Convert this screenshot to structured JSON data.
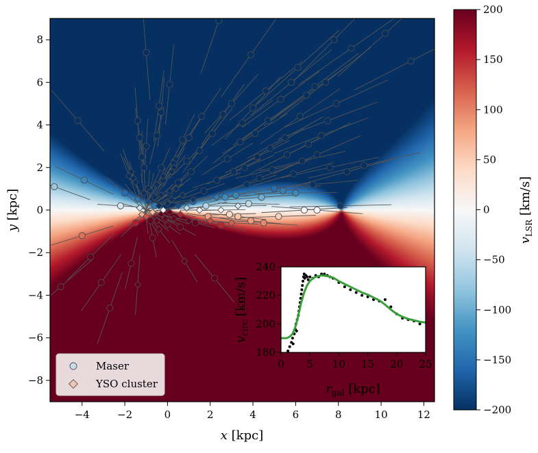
{
  "chart_data": [
    {
      "type": "scatter",
      "xlabel": {
        "main": "x",
        "unit": " [kpc]"
      },
      "ylabel": {
        "main": "y",
        "unit": " [kpc]"
      },
      "xlim": [
        -5.5,
        12.5
      ],
      "ylim": [
        -9,
        9
      ],
      "xticks": [
        -4,
        -2,
        0,
        2,
        4,
        6,
        8,
        10,
        12
      ],
      "yticks": [
        -8,
        -6,
        -4,
        -2,
        0,
        2,
        4,
        6,
        8
      ],
      "background": "v_LSR field (blue = approaching, red = receding)",
      "legend": {
        "placement": "lower-left",
        "entries": [
          {
            "label": "Maser",
            "marker": "circle"
          },
          {
            "label": "YSO cluster",
            "marker": "diamond"
          }
        ]
      },
      "series": [
        {
          "name": "Maser",
          "marker": "circle",
          "points": [
            [
              -5.3,
              1.1
            ],
            [
              -5.0,
              -3.6
            ],
            [
              -4.2,
              4.2
            ],
            [
              -4.0,
              -1.2
            ],
            [
              -3.9,
              1.4
            ],
            [
              -3.6,
              -2.2
            ],
            [
              -3.1,
              -3.4
            ],
            [
              -2.7,
              -4.6
            ],
            [
              -2.2,
              0.2
            ],
            [
              -2.0,
              0.8
            ],
            [
              -1.7,
              -2.5
            ],
            [
              -1.5,
              -0.6
            ],
            [
              -1.4,
              4.2
            ],
            [
              -1.3,
              3.4
            ],
            [
              -1.2,
              2.5
            ],
            [
              -1.1,
              2.0
            ],
            [
              -1.0,
              7.4
            ],
            [
              -1.0,
              3.0
            ],
            [
              -0.9,
              1.0
            ],
            [
              -0.8,
              -0.5
            ],
            [
              -0.7,
              -1.3
            ],
            [
              -0.6,
              0.2
            ],
            [
              -0.5,
              3.5
            ],
            [
              -0.4,
              4.9
            ],
            [
              -0.3,
              4.6
            ],
            [
              -0.3,
              2.0
            ],
            [
              -0.2,
              1.4
            ],
            [
              0.1,
              5.9
            ],
            [
              0.1,
              0.8
            ],
            [
              0.3,
              2.2
            ],
            [
              0.5,
              1.3
            ],
            [
              0.6,
              -0.8
            ],
            [
              0.7,
              3.3
            ],
            [
              0.9,
              2.3
            ],
            [
              1.0,
              3.4
            ],
            [
              1.1,
              1.8
            ],
            [
              1.2,
              0.4
            ],
            [
              1.3,
              -0.6
            ],
            [
              1.5,
              2.8
            ],
            [
              1.6,
              4.4
            ],
            [
              1.7,
              0.9
            ],
            [
              1.8,
              0.2
            ],
            [
              1.9,
              -0.3
            ],
            [
              2.1,
              3.6
            ],
            [
              2.3,
              1.4
            ],
            [
              2.5,
              -0.7
            ],
            [
              2.6,
              4.5
            ],
            [
              2.7,
              0.6
            ],
            [
              2.8,
              2.4
            ],
            [
              2.9,
              -0.2
            ],
            [
              3.0,
              5.0
            ],
            [
              3.1,
              1.8
            ],
            [
              3.2,
              0.7
            ],
            [
              3.3,
              -0.3
            ],
            [
              3.4,
              3.2
            ],
            [
              3.5,
              4.1
            ],
            [
              3.6,
              2.0
            ],
            [
              3.7,
              1.2
            ],
            [
              3.8,
              0.3
            ],
            [
              3.9,
              -0.5
            ],
            [
              4.0,
              4.8
            ],
            [
              4.1,
              3.6
            ],
            [
              4.2,
              2.5
            ],
            [
              4.3,
              1.5
            ],
            [
              4.4,
              0.6
            ],
            [
              4.5,
              -0.6
            ],
            [
              4.6,
              5.6
            ],
            [
              4.7,
              4.2
            ],
            [
              4.8,
              2.9
            ],
            [
              4.9,
              1.9
            ],
            [
              5.0,
              1.0
            ],
            [
              5.2,
              -0.3
            ],
            [
              5.3,
              5.2
            ],
            [
              5.5,
              3.4
            ],
            [
              5.6,
              2.6
            ],
            [
              5.8,
              6.0
            ],
            [
              5.9,
              1.7
            ],
            [
              6.0,
              0.8
            ],
            [
              6.1,
              6.7
            ],
            [
              6.2,
              4.4
            ],
            [
              6.3,
              2.3
            ],
            [
              6.5,
              5.4
            ],
            [
              6.6,
              3.1
            ],
            [
              6.8,
              1.2
            ],
            [
              6.9,
              5.8
            ],
            [
              7.0,
              2.6
            ],
            [
              7.2,
              3.5
            ],
            [
              7.4,
              6.0
            ],
            [
              7.5,
              4.2
            ],
            [
              7.6,
              2.0
            ],
            [
              7.8,
              8.0
            ],
            [
              7.9,
              5.0
            ],
            [
              8.1,
              0.2
            ],
            [
              8.4,
              1.8
            ],
            [
              8.6,
              7.6
            ],
            [
              9.2,
              2.1
            ],
            [
              10.2,
              8.3
            ],
            [
              11.4,
              7.0
            ],
            [
              2.4,
              8.9
            ],
            [
              2.2,
              -3.2
            ],
            [
              3.9,
              7.3
            ],
            [
              6.4,
              0.0
            ],
            [
              7.0,
              0.0
            ],
            [
              5.4,
              0.9
            ]
          ]
        },
        {
          "name": "YSO cluster",
          "marker": "diamond",
          "points": [
            [
              -1.8,
              1.6
            ],
            [
              -1.7,
              1.8
            ],
            [
              -1.6,
              1.5
            ],
            [
              -1.5,
              1.3
            ],
            [
              -1.4,
              0.5
            ],
            [
              -1.3,
              0.1
            ],
            [
              -1.2,
              -0.2
            ],
            [
              -1.1,
              0.8
            ],
            [
              -1.0,
              -0.3
            ],
            [
              -0.9,
              0.4
            ],
            [
              -0.8,
              0.9
            ],
            [
              -0.7,
              -0.1
            ],
            [
              -0.6,
              0.6
            ],
            [
              -0.5,
              -0.5
            ],
            [
              -0.5,
              1.2
            ],
            [
              -0.4,
              0.2
            ],
            [
              -0.4,
              -0.9
            ],
            [
              -0.3,
              0.7
            ],
            [
              -0.3,
              -0.2
            ],
            [
              -0.2,
              0.0
            ],
            [
              -0.2,
              1.6
            ],
            [
              -0.1,
              -0.4
            ],
            [
              0.0,
              0.3
            ],
            [
              0.0,
              -0.7
            ],
            [
              0.1,
              0.9
            ],
            [
              0.1,
              -0.1
            ],
            [
              0.2,
              0.5
            ],
            [
              0.3,
              2.0
            ],
            [
              0.3,
              -0.4
            ],
            [
              0.4,
              1.0
            ],
            [
              0.5,
              0.2
            ],
            [
              0.6,
              -0.2
            ],
            [
              0.7,
              0.7
            ],
            [
              0.8,
              -2.4
            ],
            [
              0.9,
              0.1
            ],
            [
              1.0,
              -0.5
            ],
            [
              1.2,
              0.5
            ],
            [
              1.5,
              0.0
            ],
            [
              2.0,
              -0.5
            ],
            [
              2.3,
              0.6
            ],
            [
              2.5,
              0.0
            ],
            [
              3.0,
              -0.6
            ],
            [
              3.3,
              0.2
            ],
            [
              -1.4,
              -3.5
            ],
            [
              0.2,
              1.8
            ],
            [
              0.4,
              2.4
            ]
          ]
        }
      ]
    },
    {
      "type": "scatter",
      "placement": "inset lower-right",
      "xlabel": {
        "main": "r",
        "sub": "gal",
        "unit": " [kpc]"
      },
      "ylabel": {
        "main": "v",
        "sub": "circ",
        "unit": " [km/s]"
      },
      "xlim": [
        0,
        25
      ],
      "ylim": [
        180,
        240
      ],
      "xticks": [
        0,
        5,
        10,
        15,
        20,
        25
      ],
      "yticks": [
        180,
        200,
        220,
        240
      ],
      "points": [
        [
          1.2,
          181
        ],
        [
          1.5,
          184
        ],
        [
          1.8,
          187
        ],
        [
          2.0,
          190
        ],
        [
          2.1,
          186
        ],
        [
          2.3,
          193
        ],
        [
          2.5,
          196
        ],
        [
          2.6,
          200
        ],
        [
          2.7,
          195
        ],
        [
          2.8,
          203
        ],
        [
          3.0,
          206
        ],
        [
          3.1,
          209
        ],
        [
          3.2,
          212
        ],
        [
          3.3,
          215
        ],
        [
          3.4,
          218
        ],
        [
          3.5,
          221
        ],
        [
          3.6,
          224
        ],
        [
          3.7,
          227
        ],
        [
          3.8,
          230
        ],
        [
          3.9,
          233
        ],
        [
          4.0,
          235
        ],
        [
          4.1,
          232
        ],
        [
          4.3,
          234
        ],
        [
          4.5,
          233
        ],
        [
          4.7,
          231
        ],
        [
          5.0,
          233
        ],
        [
          5.5,
          232
        ],
        [
          6.0,
          234
        ],
        [
          6.5,
          233
        ],
        [
          7.0,
          235
        ],
        [
          7.5,
          235
        ],
        [
          8.0,
          234
        ],
        [
          8.5,
          233
        ],
        [
          9.0,
          232
        ],
        [
          10.0,
          229
        ],
        [
          11.0,
          226
        ],
        [
          12.0,
          224
        ],
        [
          13.0,
          222
        ],
        [
          14.0,
          220
        ],
        [
          15.0,
          219
        ],
        [
          16.0,
          217
        ],
        [
          17.0,
          216
        ],
        [
          18.0,
          217
        ],
        [
          19.0,
          212
        ],
        [
          20.0,
          207
        ],
        [
          21.0,
          204
        ],
        [
          22.0,
          203
        ],
        [
          23.0,
          202
        ],
        [
          24.0,
          200
        ]
      ],
      "fit_line": {
        "color": "#3a9e3a",
        "points": [
          [
            0,
            190
          ],
          [
            1,
            190
          ],
          [
            1.5,
            191
          ],
          [
            2,
            193
          ],
          [
            2.5,
            198
          ],
          [
            3,
            206
          ],
          [
            3.5,
            215
          ],
          [
            4,
            222
          ],
          [
            4.5,
            227
          ],
          [
            5,
            230
          ],
          [
            5.5,
            232
          ],
          [
            6,
            233
          ],
          [
            7,
            234
          ],
          [
            8,
            233.5
          ],
          [
            9,
            232.5
          ],
          [
            10,
            230
          ],
          [
            11,
            228
          ],
          [
            12,
            226
          ],
          [
            13,
            224
          ],
          [
            14,
            222
          ],
          [
            15,
            220.5
          ],
          [
            16,
            218.5
          ],
          [
            17,
            216.5
          ],
          [
            18,
            213.5
          ],
          [
            19,
            210
          ],
          [
            20,
            207
          ],
          [
            21,
            205
          ],
          [
            22,
            203.5
          ],
          [
            23,
            202.5
          ],
          [
            24,
            201.5
          ],
          [
            25,
            201
          ]
        ]
      }
    },
    {
      "type": "colorbar",
      "label": {
        "main": "v",
        "sub": "LSR",
        "unit": " [km/s]"
      },
      "range": [
        -200,
        200
      ],
      "ticks": [
        -200,
        -150,
        -100,
        -50,
        0,
        50,
        100,
        150,
        200
      ],
      "colors": [
        "#053061",
        "#2166ac",
        "#4393c3",
        "#92c5de",
        "#d1e5f0",
        "#f7f7f7",
        "#fddbc7",
        "#f4a582",
        "#d6604d",
        "#b2182b",
        "#67001f"
      ]
    }
  ]
}
